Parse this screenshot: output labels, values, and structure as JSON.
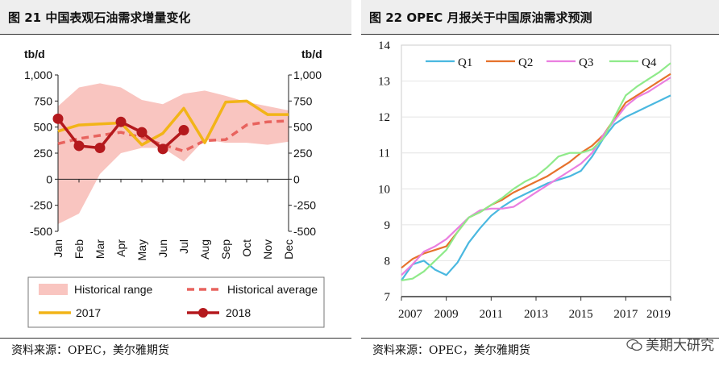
{
  "left": {
    "title": "图 21  中国表观石油需求增量变化",
    "source": "资料来源：OPEC，美尔雅期货",
    "chart_data": {
      "type": "line",
      "categories": [
        "Jan",
        "Feb",
        "Mar",
        "Apr",
        "May",
        "Jun",
        "Jul",
        "Aug",
        "Sep",
        "Oct",
        "Nov",
        "Dec"
      ],
      "ylabel_left": "tb/d",
      "ylabel_right": "tb/d",
      "ylim": [
        -500,
        1000
      ],
      "yticks": [
        "1,000",
        "750",
        "500",
        "250",
        "0",
        "-250",
        "-500"
      ],
      "ytick_values": [
        1000,
        750,
        500,
        250,
        0,
        -250,
        -500
      ],
      "series": [
        {
          "name": "Historical range",
          "kind": "band",
          "color": "#f9c5c0",
          "low": [
            -430,
            -330,
            50,
            250,
            300,
            300,
            170,
            380,
            350,
            350,
            330,
            360
          ],
          "high": [
            700,
            880,
            920,
            880,
            760,
            720,
            820,
            850,
            800,
            740,
            700,
            660
          ]
        },
        {
          "name": "Historical average",
          "kind": "dashed",
          "color": "#e8635e",
          "values": [
            340,
            390,
            420,
            450,
            400,
            330,
            270,
            370,
            380,
            520,
            550,
            560
          ]
        },
        {
          "name": "2017",
          "kind": "line",
          "color": "#f2b418",
          "values": [
            460,
            520,
            530,
            540,
            330,
            440,
            680,
            350,
            740,
            750,
            620,
            620
          ]
        },
        {
          "name": "2018",
          "kind": "marker",
          "color": "#b4191d",
          "values": [
            580,
            320,
            300,
            550,
            450,
            290,
            470,
            null,
            null,
            null,
            null,
            null
          ]
        }
      ],
      "legend": [
        "Historical range",
        "Historical average",
        "2017",
        "2018"
      ],
      "legend_position": "bottom"
    }
  },
  "right": {
    "title": "图 22   OPEC 月报关于中国原油需求预测",
    "source": "资料来源：OPEC，美尔雅期货",
    "watermark": "美期大研究",
    "chart_data": {
      "type": "line",
      "xlim": [
        2007,
        2019
      ],
      "xticks": [
        "2007",
        "2009",
        "2011",
        "2013",
        "2015",
        "2017",
        "2019"
      ],
      "xtick_values": [
        2007,
        2009,
        2011,
        2013,
        2015,
        2017,
        2019
      ],
      "ylim": [
        7,
        14
      ],
      "yticks": [
        "7",
        "8",
        "9",
        "10",
        "11",
        "12",
        "13",
        "14"
      ],
      "ytick_values": [
        7,
        8,
        9,
        10,
        11,
        12,
        13,
        14
      ],
      "legend_position": "top",
      "series": [
        {
          "name": "Q1",
          "color": "#4ab8e0",
          "x": [
            2007,
            2007.5,
            2008,
            2008.5,
            2009,
            2009.5,
            2010,
            2010.5,
            2011,
            2011.5,
            2012,
            2012.5,
            2013,
            2013.5,
            2014,
            2014.5,
            2015,
            2015.5,
            2016,
            2016.5,
            2017,
            2017.5,
            2018,
            2018.5,
            2019
          ],
          "y": [
            7.45,
            7.9,
            8.0,
            7.75,
            7.6,
            7.95,
            8.5,
            8.9,
            9.25,
            9.5,
            9.7,
            9.85,
            10.0,
            10.15,
            10.25,
            10.35,
            10.5,
            10.9,
            11.4,
            11.8,
            12.0,
            12.15,
            12.3,
            12.45,
            12.6
          ]
        },
        {
          "name": "Q2",
          "color": "#e6722c",
          "x": [
            2007,
            2007.5,
            2008,
            2008.5,
            2009,
            2009.5,
            2010,
            2010.5,
            2011,
            2011.5,
            2012,
            2012.5,
            2013,
            2013.5,
            2014,
            2014.5,
            2015,
            2015.5,
            2016,
            2016.5,
            2017,
            2017.5,
            2018,
            2018.5,
            2019
          ],
          "y": [
            7.8,
            8.05,
            8.2,
            8.3,
            8.4,
            8.8,
            9.2,
            9.35,
            9.55,
            9.7,
            9.9,
            10.05,
            10.2,
            10.35,
            10.55,
            10.75,
            11.0,
            11.2,
            11.5,
            11.95,
            12.4,
            12.6,
            12.8,
            13.0,
            13.2
          ]
        },
        {
          "name": "Q3",
          "color": "#ea7fe0",
          "x": [
            2007,
            2007.5,
            2008,
            2008.5,
            2009,
            2009.5,
            2010,
            2010.5,
            2011,
            2011.5,
            2012,
            2012.5,
            2013,
            2013.5,
            2014,
            2014.5,
            2015,
            2015.5,
            2016,
            2016.5,
            2017,
            2017.5,
            2018,
            2018.5,
            2019
          ],
          "y": [
            7.6,
            7.9,
            8.25,
            8.4,
            8.6,
            8.9,
            9.2,
            9.4,
            9.45,
            9.45,
            9.5,
            9.7,
            9.9,
            10.1,
            10.3,
            10.5,
            10.7,
            11.0,
            11.5,
            11.9,
            12.3,
            12.55,
            12.7,
            12.9,
            13.1
          ]
        },
        {
          "name": "Q4",
          "color": "#8fea8a",
          "x": [
            2007,
            2007.5,
            2008,
            2008.5,
            2009,
            2009.5,
            2010,
            2010.5,
            2011,
            2011.5,
            2012,
            2012.5,
            2013,
            2013.5,
            2014,
            2014.5,
            2015,
            2015.5,
            2016,
            2016.5,
            2017,
            2017.5,
            2018,
            2018.5,
            2019
          ],
          "y": [
            7.45,
            7.5,
            7.7,
            8.0,
            8.3,
            8.8,
            9.2,
            9.35,
            9.55,
            9.75,
            10.0,
            10.2,
            10.35,
            10.6,
            10.9,
            11.0,
            11.0,
            11.1,
            11.4,
            12.0,
            12.6,
            12.85,
            13.05,
            13.25,
            13.5
          ]
        }
      ]
    }
  }
}
